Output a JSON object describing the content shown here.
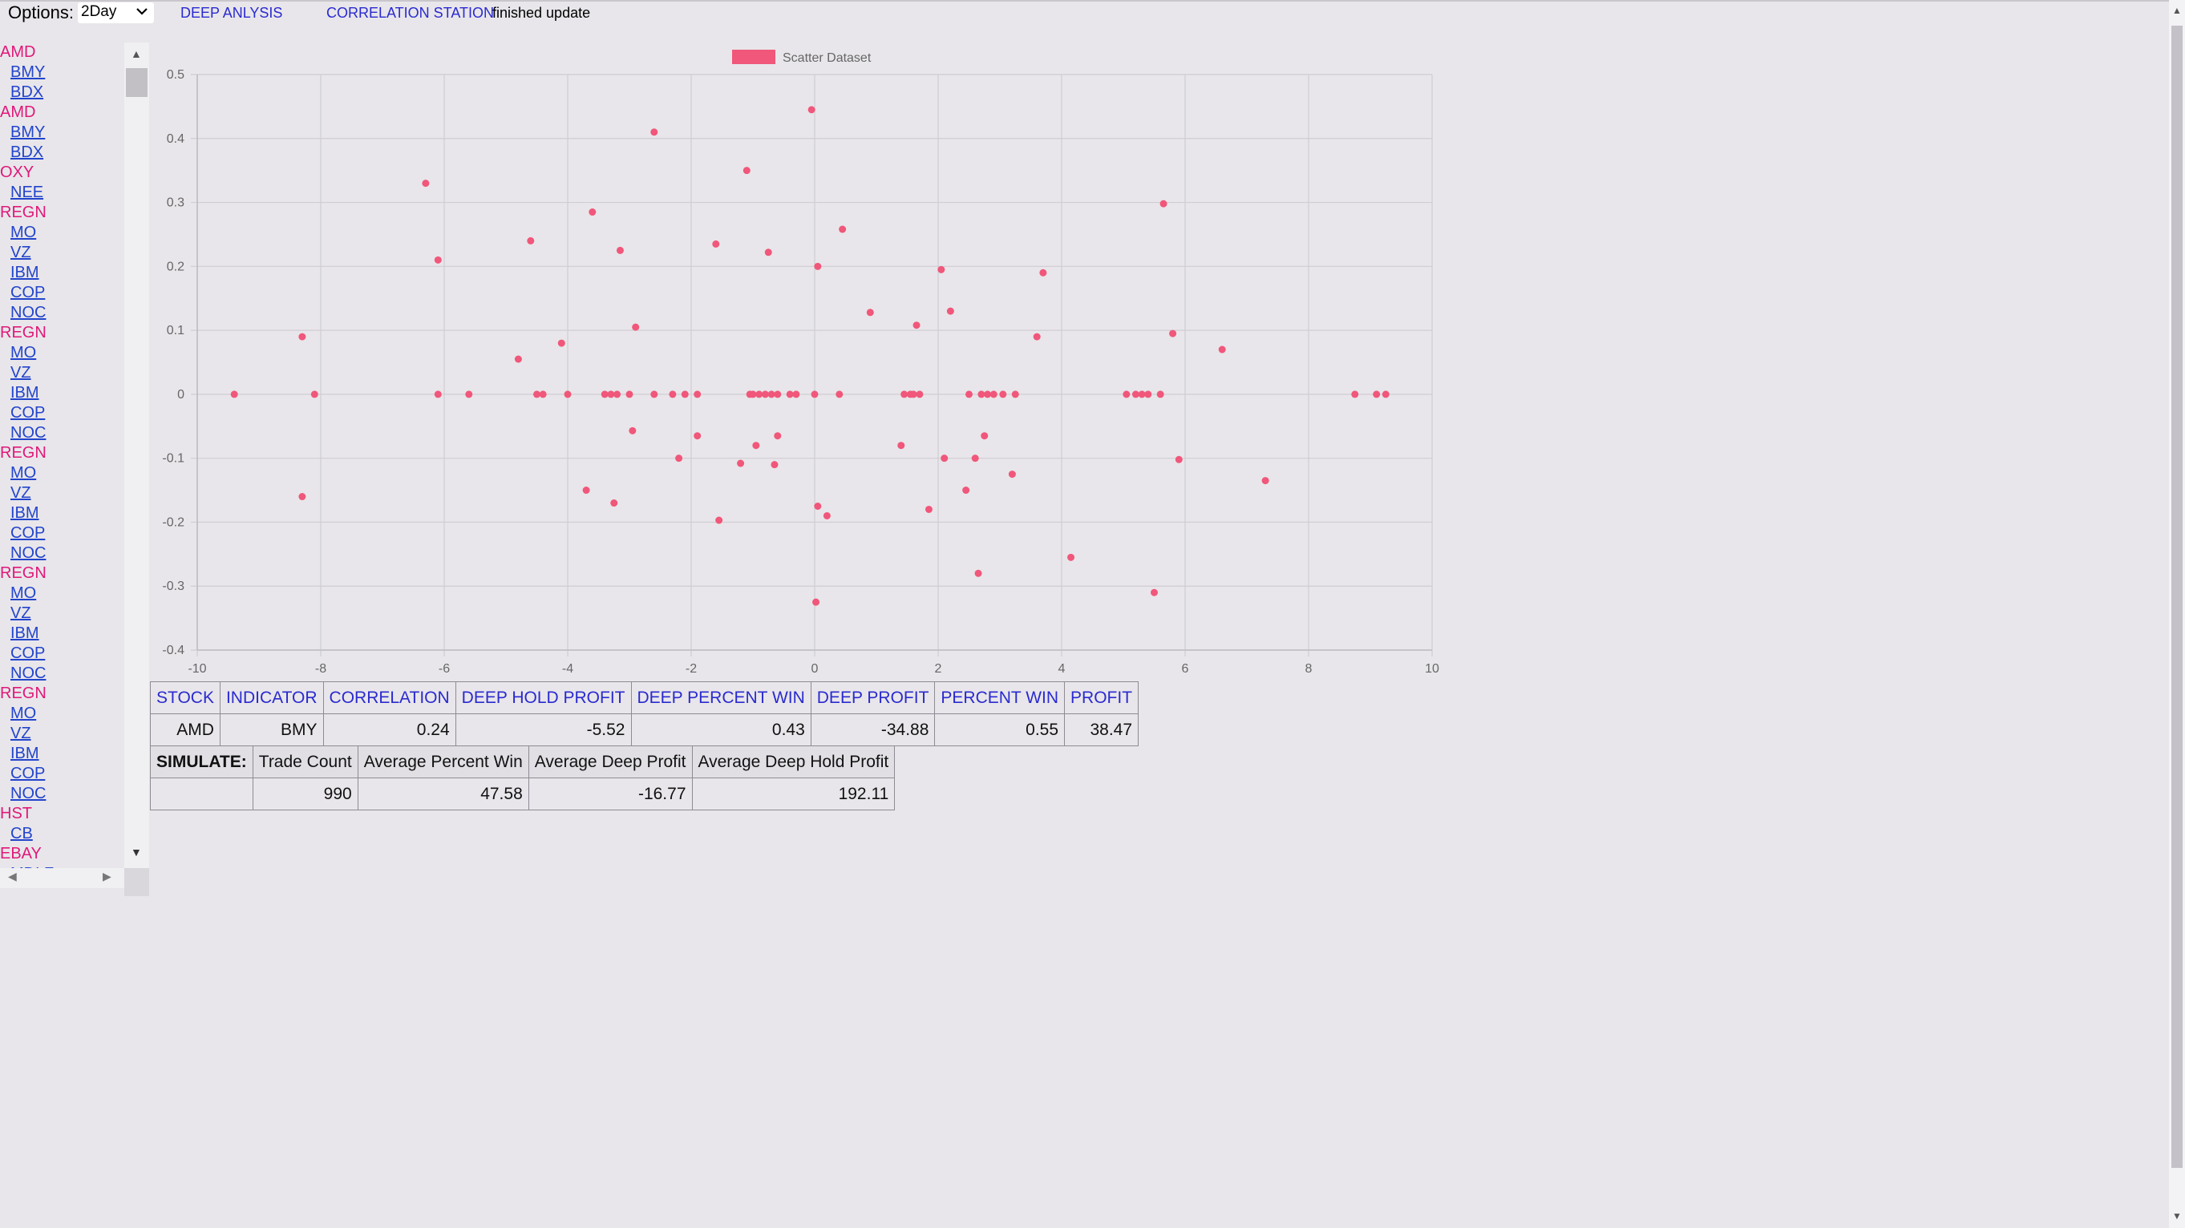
{
  "topbar": {
    "options_label": "Options:",
    "period_value": "2Day",
    "deep_link": "DEEP ANLYSIS",
    "corr_link": "CORRELATION STATION",
    "status": "finished update"
  },
  "sidebar": {
    "items": [
      {
        "type": "stock",
        "label": "AMD"
      },
      {
        "type": "ind",
        "label": "BMY"
      },
      {
        "type": "ind",
        "label": "BDX"
      },
      {
        "type": "stock",
        "label": "AMD"
      },
      {
        "type": "ind",
        "label": "BMY"
      },
      {
        "type": "ind",
        "label": "BDX"
      },
      {
        "type": "stock",
        "label": "OXY"
      },
      {
        "type": "ind",
        "label": "NEE"
      },
      {
        "type": "stock",
        "label": "REGN"
      },
      {
        "type": "ind",
        "label": "MO"
      },
      {
        "type": "ind",
        "label": "VZ"
      },
      {
        "type": "ind",
        "label": "IBM"
      },
      {
        "type": "ind",
        "label": "COP"
      },
      {
        "type": "ind",
        "label": "NOC"
      },
      {
        "type": "stock",
        "label": "REGN"
      },
      {
        "type": "ind",
        "label": "MO"
      },
      {
        "type": "ind",
        "label": "VZ"
      },
      {
        "type": "ind",
        "label": "IBM"
      },
      {
        "type": "ind",
        "label": "COP"
      },
      {
        "type": "ind",
        "label": "NOC"
      },
      {
        "type": "stock",
        "label": "REGN"
      },
      {
        "type": "ind",
        "label": "MO"
      },
      {
        "type": "ind",
        "label": "VZ"
      },
      {
        "type": "ind",
        "label": "IBM"
      },
      {
        "type": "ind",
        "label": "COP"
      },
      {
        "type": "ind",
        "label": "NOC"
      },
      {
        "type": "stock",
        "label": "REGN"
      },
      {
        "type": "ind",
        "label": "MO"
      },
      {
        "type": "ind",
        "label": "VZ"
      },
      {
        "type": "ind",
        "label": "IBM"
      },
      {
        "type": "ind",
        "label": "COP"
      },
      {
        "type": "ind",
        "label": "NOC"
      },
      {
        "type": "stock",
        "label": "REGN"
      },
      {
        "type": "ind",
        "label": "MO"
      },
      {
        "type": "ind",
        "label": "VZ"
      },
      {
        "type": "ind",
        "label": "IBM"
      },
      {
        "type": "ind",
        "label": "COP"
      },
      {
        "type": "ind",
        "label": "NOC"
      },
      {
        "type": "stock",
        "label": "HST"
      },
      {
        "type": "ind",
        "label": "CB"
      },
      {
        "type": "stock",
        "label": "EBAY"
      },
      {
        "type": "ind",
        "label": "MDLZ"
      }
    ]
  },
  "chart_data": {
    "type": "scatter",
    "series": [
      {
        "name": "Scatter Dataset",
        "color": "#f0577a",
        "points": [
          [
            -9.4,
            0
          ],
          [
            -8.3,
            0.09
          ],
          [
            -8.3,
            -0.16
          ],
          [
            -8.1,
            0
          ],
          [
            -6.3,
            0.33
          ],
          [
            -6.1,
            0.21
          ],
          [
            -6.1,
            0
          ],
          [
            -5.6,
            0
          ],
          [
            -4.8,
            0.055
          ],
          [
            -4.6,
            0.24
          ],
          [
            -4.5,
            0
          ],
          [
            -4.4,
            0
          ],
          [
            -4.1,
            0.08
          ],
          [
            -4.0,
            0
          ],
          [
            -3.7,
            -0.15
          ],
          [
            -3.6,
            0.285
          ],
          [
            -3.4,
            0
          ],
          [
            -3.3,
            0
          ],
          [
            -3.25,
            -0.17
          ],
          [
            -3.2,
            0
          ],
          [
            -3.15,
            0.225
          ],
          [
            -3.0,
            0
          ],
          [
            -2.95,
            -0.057
          ],
          [
            -2.9,
            0.105
          ],
          [
            -2.6,
            0.41
          ],
          [
            -2.6,
            0
          ],
          [
            -2.3,
            0
          ],
          [
            -2.2,
            -0.1
          ],
          [
            -2.1,
            0
          ],
          [
            -1.9,
            -0.065
          ],
          [
            -1.9,
            0
          ],
          [
            -1.6,
            0.235
          ],
          [
            -1.55,
            -0.197
          ],
          [
            -1.2,
            -0.108
          ],
          [
            -1.1,
            0.35
          ],
          [
            -1.05,
            0
          ],
          [
            -1.0,
            0
          ],
          [
            -0.95,
            -0.08
          ],
          [
            -0.9,
            0
          ],
          [
            -0.8,
            0
          ],
          [
            -0.75,
            0.222
          ],
          [
            -0.7,
            0
          ],
          [
            -0.65,
            -0.11
          ],
          [
            -0.6,
            0
          ],
          [
            -0.6,
            -0.065
          ],
          [
            -0.4,
            0
          ],
          [
            -0.3,
            0
          ],
          [
            -0.05,
            0.445
          ],
          [
            0.0,
            0
          ],
          [
            0.02,
            -0.325
          ],
          [
            0.05,
            0.2
          ],
          [
            0.05,
            -0.175
          ],
          [
            0.2,
            -0.19
          ],
          [
            0.4,
            0
          ],
          [
            0.45,
            0.258
          ],
          [
            0.9,
            0.128
          ],
          [
            1.4,
            -0.08
          ],
          [
            1.45,
            0
          ],
          [
            1.55,
            0
          ],
          [
            1.6,
            0
          ],
          [
            1.65,
            0.108
          ],
          [
            1.7,
            0
          ],
          [
            1.85,
            -0.18
          ],
          [
            2.05,
            0.195
          ],
          [
            2.1,
            -0.1
          ],
          [
            2.2,
            0.13
          ],
          [
            2.45,
            -0.15
          ],
          [
            2.5,
            0
          ],
          [
            2.6,
            -0.1
          ],
          [
            2.65,
            -0.28
          ],
          [
            2.7,
            0
          ],
          [
            2.75,
            -0.065
          ],
          [
            2.8,
            0
          ],
          [
            2.9,
            0
          ],
          [
            3.05,
            0
          ],
          [
            3.2,
            -0.125
          ],
          [
            3.25,
            0
          ],
          [
            3.6,
            0.09
          ],
          [
            3.7,
            0.19
          ],
          [
            4.15,
            -0.255
          ],
          [
            5.05,
            0
          ],
          [
            5.2,
            0
          ],
          [
            5.3,
            0
          ],
          [
            5.4,
            0
          ],
          [
            5.5,
            -0.31
          ],
          [
            5.6,
            0
          ],
          [
            5.65,
            0.298
          ],
          [
            5.8,
            0.095
          ],
          [
            5.9,
            -0.102
          ],
          [
            6.6,
            0.07
          ],
          [
            7.3,
            -0.135
          ],
          [
            8.75,
            0
          ],
          [
            9.1,
            0
          ],
          [
            9.25,
            0
          ]
        ]
      }
    ],
    "xlim": [
      -10,
      10
    ],
    "ylim": [
      -0.4,
      0.5
    ],
    "xticks": [
      "-10",
      "-8",
      "-6",
      "-4",
      "-2",
      "0",
      "2",
      "4",
      "6",
      "8",
      "10"
    ],
    "yticks": [
      "0.5",
      "0.4",
      "0.3",
      "0.2",
      "0.1",
      "0",
      "-0.1",
      "-0.2",
      "-0.3",
      "-0.4"
    ],
    "legend": "top-center",
    "grid": true
  },
  "results": {
    "headers": [
      "STOCK",
      "INDICATOR",
      "CORRELATION",
      "DEEP HOLD PROFIT",
      "DEEP PERCENT WIN",
      "DEEP PROFIT",
      "PERCENT WIN",
      "PROFIT"
    ],
    "row": [
      "AMD",
      "BMY",
      "0.24",
      "-5.52",
      "0.43",
      "-34.88",
      "0.55",
      "38.47"
    ]
  },
  "simulate": {
    "label": "SIMULATE:",
    "headers": [
      "Trade Count",
      "Average Percent Win",
      "Average Deep Profit",
      "Average Deep Hold Profit"
    ],
    "values": [
      "990",
      "47.58",
      "-16.77",
      "192.11"
    ]
  }
}
